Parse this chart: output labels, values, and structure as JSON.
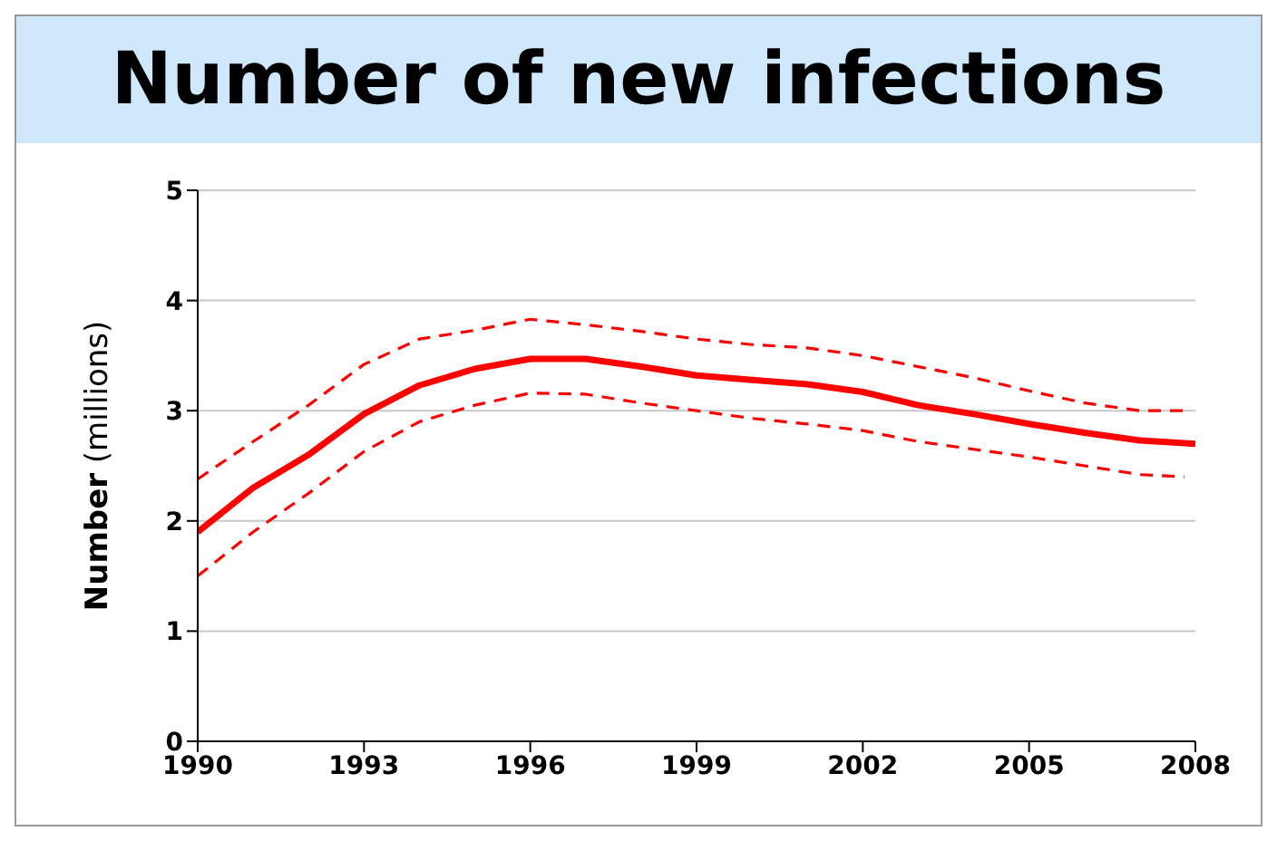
{
  "chart_data": {
    "type": "line",
    "title": "Number of new infections",
    "ylabel": "Number (millions)",
    "xlim": [
      1990,
      2008
    ],
    "xticks": [
      1990,
      1993,
      1996,
      1999,
      2002,
      2005,
      2008
    ],
    "ylim": [
      0,
      5
    ],
    "yticks": [
      0,
      1,
      2,
      3,
      4,
      5
    ],
    "grid": "y",
    "marker": "none",
    "series": [
      {
        "color": "#ff0000",
        "line_style": "dashed",
        "x": [
          1990,
          1991,
          1992,
          1993,
          1994,
          1995,
          1996,
          1997,
          1998,
          1999,
          2000,
          2001,
          2002,
          2003,
          2004,
          2005,
          2006,
          2007,
          2007.8
        ],
        "values": [
          2.38,
          2.72,
          3.05,
          3.42,
          3.65,
          3.73,
          3.83,
          3.78,
          3.72,
          3.65,
          3.6,
          3.57,
          3.5,
          3.4,
          3.3,
          3.18,
          3.07,
          3.0,
          3.0
        ]
      },
      {
        "color": "#ff0000",
        "line_style": "solid",
        "x": [
          1990,
          1991,
          1992,
          1993,
          1994,
          1995,
          1996,
          1997,
          1998,
          1999,
          2000,
          2001,
          2002,
          2003,
          2004,
          2005,
          2006,
          2007,
          2008
        ],
        "values": [
          1.9,
          2.3,
          2.6,
          2.97,
          3.23,
          3.38,
          3.47,
          3.47,
          3.4,
          3.32,
          3.28,
          3.24,
          3.17,
          3.05,
          2.97,
          2.88,
          2.8,
          2.73,
          2.7
        ]
      },
      {
        "color": "#ff0000",
        "line_style": "dashed",
        "x": [
          1990,
          1991,
          1992,
          1993,
          1994,
          1995,
          1996,
          1997,
          1998,
          1999,
          2000,
          2001,
          2002,
          2003,
          2004,
          2005,
          2006,
          2007,
          2007.8
        ],
        "values": [
          1.5,
          1.9,
          2.25,
          2.63,
          2.9,
          3.05,
          3.16,
          3.15,
          3.07,
          3.0,
          2.93,
          2.88,
          2.82,
          2.72,
          2.65,
          2.58,
          2.5,
          2.42,
          2.4
        ]
      }
    ]
  }
}
